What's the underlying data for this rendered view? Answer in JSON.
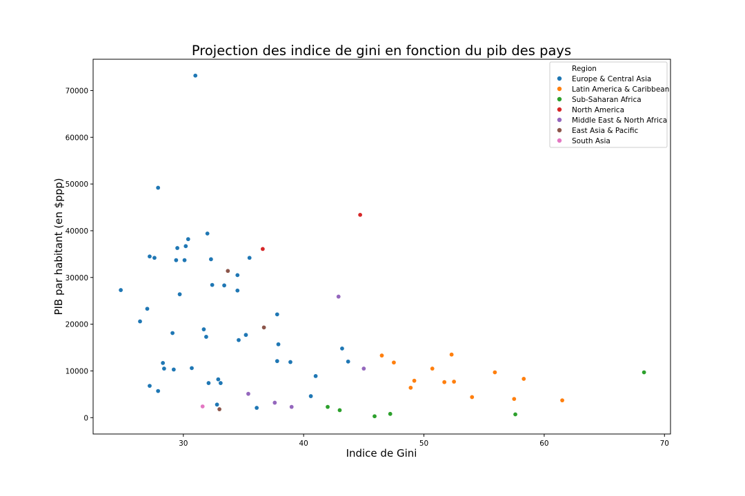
{
  "chart_data": {
    "type": "scatter",
    "title": "Projection des indice de gini en fonction du pib des pays",
    "xlabel": "Indice de Gini",
    "ylabel": "PIB par habitant (en $ppp)",
    "xlim": [
      22.5,
      70.5
    ],
    "ylim": [
      -3500,
      76700
    ],
    "xticks": [
      30,
      40,
      50,
      60,
      70
    ],
    "yticks": [
      0,
      10000,
      20000,
      30000,
      40000,
      50000,
      60000,
      70000
    ],
    "grid": false,
    "legend": {
      "title": "Region",
      "placement": "top-right"
    },
    "series": [
      {
        "name": "Europe & Central Asia",
        "color": "#1f77b4",
        "points": [
          [
            24.8,
            27300
          ],
          [
            26.4,
            20600
          ],
          [
            27.0,
            23300
          ],
          [
            27.2,
            34500
          ],
          [
            27.6,
            34200
          ],
          [
            27.9,
            49200
          ],
          [
            27.2,
            6800
          ],
          [
            27.9,
            5700
          ],
          [
            28.3,
            11700
          ],
          [
            28.4,
            10500
          ],
          [
            29.1,
            18100
          ],
          [
            29.2,
            10300
          ],
          [
            29.4,
            33700
          ],
          [
            29.5,
            36300
          ],
          [
            29.7,
            26400
          ],
          [
            30.1,
            33700
          ],
          [
            30.2,
            36700
          ],
          [
            30.4,
            38200
          ],
          [
            30.7,
            10600
          ],
          [
            31.0,
            73200
          ],
          [
            31.7,
            18900
          ],
          [
            31.9,
            17300
          ],
          [
            32.0,
            39400
          ],
          [
            32.1,
            7400
          ],
          [
            32.3,
            33900
          ],
          [
            32.4,
            28400
          ],
          [
            32.8,
            2800
          ],
          [
            32.9,
            8200
          ],
          [
            33.1,
            7400
          ],
          [
            33.4,
            28300
          ],
          [
            34.5,
            30500
          ],
          [
            34.5,
            27200
          ],
          [
            34.6,
            16600
          ],
          [
            35.2,
            17700
          ],
          [
            35.5,
            34200
          ],
          [
            36.1,
            2100
          ],
          [
            37.8,
            22100
          ],
          [
            37.8,
            12100
          ],
          [
            37.9,
            15700
          ],
          [
            38.9,
            11900
          ],
          [
            40.6,
            4600
          ],
          [
            41.0,
            8900
          ],
          [
            43.2,
            14800
          ],
          [
            43.7,
            12000
          ]
        ]
      },
      {
        "name": "Latin America & Caribbean",
        "color": "#ff7f0e",
        "points": [
          [
            46.5,
            13300
          ],
          [
            47.5,
            11800
          ],
          [
            48.9,
            6400
          ],
          [
            49.2,
            7900
          ],
          [
            50.7,
            10500
          ],
          [
            51.7,
            7600
          ],
          [
            52.3,
            13500
          ],
          [
            52.5,
            7700
          ],
          [
            54.0,
            4400
          ],
          [
            55.9,
            9700
          ],
          [
            57.5,
            4000
          ],
          [
            58.3,
            8300
          ],
          [
            61.5,
            3700
          ]
        ]
      },
      {
        "name": "Sub-Saharan Africa",
        "color": "#2ca02c",
        "points": [
          [
            42.0,
            2300
          ],
          [
            43.0,
            1600
          ],
          [
            45.9,
            300
          ],
          [
            47.2,
            800
          ],
          [
            57.6,
            700
          ],
          [
            68.3,
            9700
          ]
        ]
      },
      {
        "name": "North America",
        "color": "#d62728",
        "points": [
          [
            36.6,
            36100
          ],
          [
            44.7,
            43400
          ]
        ]
      },
      {
        "name": "Middle East & North Africa",
        "color": "#9467bd",
        "points": [
          [
            35.4,
            5100
          ],
          [
            37.6,
            3200
          ],
          [
            39.0,
            2300
          ],
          [
            42.9,
            25900
          ],
          [
            45.0,
            10500
          ]
        ]
      },
      {
        "name": "East Asia & Pacific",
        "color": "#8c564b",
        "points": [
          [
            33.0,
            1800
          ],
          [
            33.7,
            31400
          ],
          [
            36.7,
            19300
          ]
        ]
      },
      {
        "name": "South Asia",
        "color": "#e377c2",
        "points": [
          [
            31.6,
            2400
          ]
        ]
      }
    ]
  }
}
